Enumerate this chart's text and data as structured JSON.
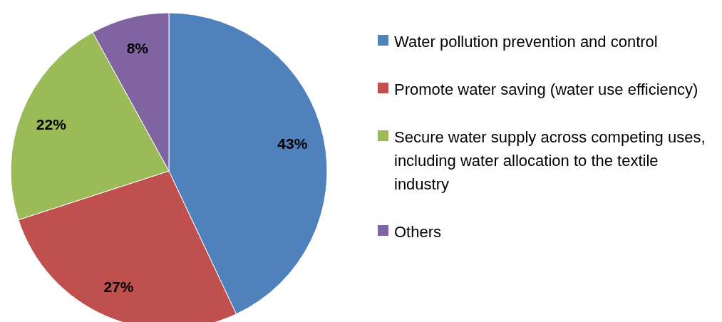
{
  "chart_data": {
    "type": "pie",
    "categories": [
      "Water pollution prevention and control",
      "Promote water saving (water use efficiency)",
      "Secure water supply across competing uses, including water allocation to the textile industry",
      "Others"
    ],
    "values": [
      43,
      27,
      22,
      8
    ],
    "colors": [
      "#4f81bd",
      "#c0504d",
      "#9bbb59",
      "#8064a2"
    ],
    "value_labels": [
      "43%",
      "27%",
      "22%",
      "8%"
    ],
    "legend": "right"
  }
}
